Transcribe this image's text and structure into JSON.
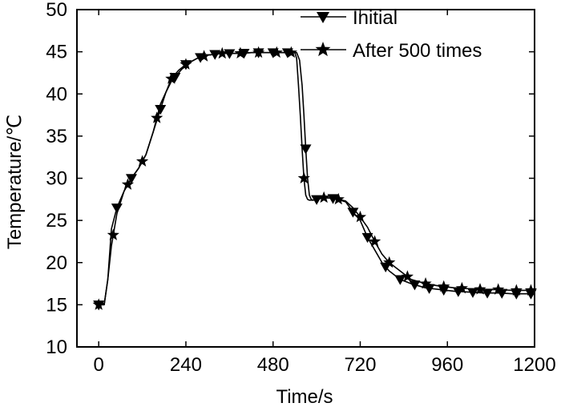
{
  "chart_data": {
    "type": "line",
    "xlabel": "Time/s",
    "ylabel": "Temperature/℃",
    "xlim": [
      -60,
      1200
    ],
    "ylim": [
      10,
      50
    ],
    "xticks": [
      0,
      240,
      480,
      720,
      960,
      1200
    ],
    "yticks": [
      10,
      15,
      20,
      25,
      30,
      35,
      40,
      45,
      50
    ],
    "legend": "top-right",
    "grid": false,
    "series": [
      {
        "name": "Initial",
        "marker": "triangle-down",
        "color": "#000000",
        "x": [
          0,
          15,
          25,
          35,
          50,
          70,
          90,
          110,
          130,
          150,
          170,
          185,
          200,
          220,
          240,
          270,
          300,
          340,
          380,
          420,
          460,
          500,
          530,
          545,
          553,
          560,
          565,
          570,
          575,
          580,
          585,
          590,
          600,
          620,
          650,
          680,
          700,
          720,
          740,
          760,
          780,
          800,
          830,
          860,
          900,
          940,
          980,
          1020,
          1060,
          1100,
          1140,
          1180,
          1200
        ],
        "y": [
          15,
          15,
          18,
          24,
          26.5,
          28.5,
          30,
          31.2,
          32.8,
          35.5,
          38.2,
          40.2,
          41.5,
          42.5,
          43.5,
          44.2,
          44.6,
          44.8,
          44.8,
          44.9,
          44.9,
          44.9,
          44.9,
          44.9,
          44,
          41,
          37.5,
          33.5,
          30,
          28,
          27.5,
          27.4,
          27.5,
          27.7,
          27.6,
          27.2,
          26,
          25,
          23,
          21.5,
          20,
          19,
          18,
          17.5,
          17,
          16.8,
          16.6,
          16.5,
          16.4,
          16.4,
          16.3,
          16.3,
          16.3
        ],
        "marker_x": [
          0,
          50,
          90,
          170,
          210,
          240,
          280,
          320,
          360,
          400,
          440,
          480,
          520,
          570,
          600,
          645,
          700,
          740,
          790,
          830,
          870,
          910,
          950,
          990,
          1030,
          1070,
          1110,
          1150,
          1190
        ]
      },
      {
        "name": "After 500 times",
        "marker": "star",
        "color": "#000000",
        "x": [
          0,
          15,
          25,
          35,
          50,
          70,
          90,
          110,
          130,
          150,
          170,
          185,
          200,
          220,
          240,
          270,
          300,
          340,
          380,
          420,
          460,
          500,
          530,
          540,
          545,
          550,
          555,
          560,
          565,
          570,
          575,
          580,
          590,
          600,
          620,
          650,
          680,
          700,
          720,
          740,
          760,
          780,
          800,
          830,
          860,
          900,
          940,
          980,
          1020,
          1060,
          1100,
          1140,
          1180,
          1200
        ],
        "y": [
          15,
          15,
          18,
          22,
          25.8,
          28.5,
          30,
          31.2,
          32.8,
          35.5,
          38.8,
          40.2,
          41.8,
          42.8,
          43.5,
          44.2,
          44.6,
          44.8,
          44.8,
          44.9,
          44.9,
          44.9,
          44.9,
          44.9,
          44.2,
          41,
          37.5,
          33.5,
          30,
          28,
          27.5,
          27.4,
          27.4,
          27.5,
          27.7,
          27.6,
          27.3,
          26.5,
          25.4,
          24.2,
          22.5,
          21,
          20,
          19,
          18,
          17.5,
          17.2,
          17,
          16.9,
          16.8,
          16.8,
          16.7,
          16.7,
          16.7
        ],
        "marker_x": [
          0,
          40,
          80,
          120,
          160,
          200,
          240,
          290,
          340,
          390,
          440,
          490,
          530,
          565,
          620,
          660,
          720,
          760,
          800,
          850,
          900,
          950,
          1000,
          1050,
          1100,
          1150,
          1190
        ]
      }
    ]
  }
}
